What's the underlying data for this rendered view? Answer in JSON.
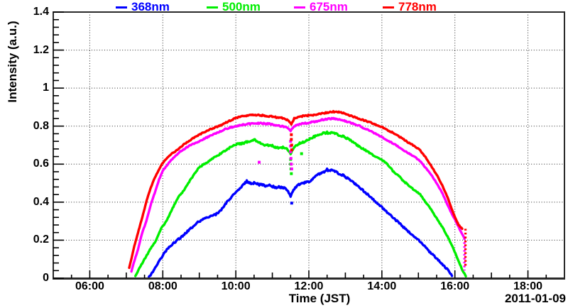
{
  "chart_data": {
    "type": "line",
    "title": "",
    "xlabel": "Time (JST)",
    "ylabel": "Intensity (a.u.)",
    "date_annotation": "2011-01-09",
    "xlim_hours": [
      5,
      19
    ],
    "ylim": [
      0,
      1.4
    ],
    "x_tick_labels": [
      "06:00",
      "08:00",
      "10:00",
      "12:00",
      "14:00",
      "16:00",
      "18:00"
    ],
    "x_tick_hours": [
      6,
      8,
      10,
      12,
      14,
      16,
      18
    ],
    "x_minor_step_hours": 0.5,
    "y_tick_labels": [
      "0",
      "0.2",
      "0.4",
      "0.6",
      "0.8",
      "1",
      "1.2",
      "1.4"
    ],
    "y_tick_values": [
      0,
      0.2,
      0.4,
      0.6,
      0.8,
      1.0,
      1.2,
      1.4
    ],
    "y_minor_step": 0.04,
    "grid": "dotted black lines at every major tick, both axes",
    "legend_position": "top outside frame",
    "frame_color": "#2a2a2a",
    "grid_color": "#000000",
    "series": [
      {
        "name": "368nm",
        "color": "#0000ff",
        "noise": 0.007,
        "points": [
          [
            7.62,
            0.005
          ],
          [
            7.75,
            0.04
          ],
          [
            7.9,
            0.09
          ],
          [
            8.0,
            0.12
          ],
          [
            8.15,
            0.16
          ],
          [
            8.3,
            0.185
          ],
          [
            8.5,
            0.215
          ],
          [
            8.7,
            0.25
          ],
          [
            8.9,
            0.285
          ],
          [
            9.0,
            0.3
          ],
          [
            9.15,
            0.315
          ],
          [
            9.3,
            0.325
          ],
          [
            9.45,
            0.335
          ],
          [
            9.6,
            0.36
          ],
          [
            9.75,
            0.4
          ],
          [
            9.9,
            0.43
          ],
          [
            10.0,
            0.455
          ],
          [
            10.15,
            0.48
          ],
          [
            10.3,
            0.51
          ],
          [
            10.4,
            0.5
          ],
          [
            10.5,
            0.5
          ],
          [
            10.6,
            0.493
          ],
          [
            10.75,
            0.49
          ],
          [
            10.9,
            0.487
          ],
          [
            11.05,
            0.48
          ],
          [
            11.2,
            0.478
          ],
          [
            11.35,
            0.474
          ],
          [
            11.45,
            0.45
          ],
          [
            11.5,
            0.43
          ],
          [
            11.58,
            0.465
          ],
          [
            11.7,
            0.49
          ],
          [
            11.85,
            0.5
          ],
          [
            12.0,
            0.507
          ],
          [
            12.1,
            0.52
          ],
          [
            12.25,
            0.548
          ],
          [
            12.4,
            0.558
          ],
          [
            12.5,
            0.57
          ],
          [
            12.65,
            0.565
          ],
          [
            12.8,
            0.553
          ],
          [
            12.95,
            0.54
          ],
          [
            13.1,
            0.52
          ],
          [
            13.3,
            0.49
          ],
          [
            13.5,
            0.46
          ],
          [
            13.7,
            0.425
          ],
          [
            13.9,
            0.39
          ],
          [
            14.1,
            0.355
          ],
          [
            14.3,
            0.32
          ],
          [
            14.5,
            0.285
          ],
          [
            14.7,
            0.25
          ],
          [
            14.9,
            0.215
          ],
          [
            15.1,
            0.185
          ],
          [
            15.3,
            0.14
          ],
          [
            15.5,
            0.105
          ],
          [
            15.65,
            0.075
          ],
          [
            15.8,
            0.045
          ],
          [
            15.92,
            0.012
          ]
        ],
        "outliers": [
          [
            11.53,
            0.395
          ]
        ]
      },
      {
        "name": "500nm",
        "color": "#00ee00",
        "noise": 0.006,
        "points": [
          [
            7.25,
            0.01
          ],
          [
            7.35,
            0.05
          ],
          [
            7.5,
            0.1
          ],
          [
            7.65,
            0.15
          ],
          [
            7.82,
            0.2
          ],
          [
            7.95,
            0.26
          ],
          [
            8.1,
            0.3
          ],
          [
            8.25,
            0.36
          ],
          [
            8.4,
            0.42
          ],
          [
            8.55,
            0.455
          ],
          [
            8.7,
            0.5
          ],
          [
            8.85,
            0.545
          ],
          [
            9.0,
            0.585
          ],
          [
            9.15,
            0.6
          ],
          [
            9.3,
            0.62
          ],
          [
            9.5,
            0.645
          ],
          [
            9.7,
            0.67
          ],
          [
            9.9,
            0.695
          ],
          [
            10.05,
            0.705
          ],
          [
            10.2,
            0.71
          ],
          [
            10.35,
            0.72
          ],
          [
            10.5,
            0.73
          ],
          [
            10.6,
            0.72
          ],
          [
            10.7,
            0.705
          ],
          [
            10.85,
            0.7
          ],
          [
            11.0,
            0.697
          ],
          [
            11.1,
            0.685
          ],
          [
            11.25,
            0.69
          ],
          [
            11.4,
            0.68
          ],
          [
            11.5,
            0.655
          ],
          [
            11.6,
            0.69
          ],
          [
            11.75,
            0.71
          ],
          [
            11.9,
            0.72
          ],
          [
            12.05,
            0.735
          ],
          [
            12.2,
            0.75
          ],
          [
            12.35,
            0.76
          ],
          [
            12.5,
            0.765
          ],
          [
            12.65,
            0.763
          ],
          [
            12.8,
            0.755
          ],
          [
            12.95,
            0.745
          ],
          [
            13.1,
            0.73
          ],
          [
            13.25,
            0.71
          ],
          [
            13.4,
            0.69
          ],
          [
            13.55,
            0.672
          ],
          [
            13.7,
            0.655
          ],
          [
            13.85,
            0.638
          ],
          [
            14.0,
            0.62
          ],
          [
            14.15,
            0.6
          ],
          [
            14.3,
            0.565
          ],
          [
            14.45,
            0.54
          ],
          [
            14.6,
            0.51
          ],
          [
            14.75,
            0.487
          ],
          [
            14.9,
            0.462
          ],
          [
            15.05,
            0.44
          ],
          [
            15.2,
            0.4
          ],
          [
            15.35,
            0.36
          ],
          [
            15.5,
            0.315
          ],
          [
            15.65,
            0.27
          ],
          [
            15.8,
            0.22
          ],
          [
            15.95,
            0.16
          ],
          [
            16.1,
            0.09
          ],
          [
            16.2,
            0.045
          ],
          [
            16.3,
            0.01
          ]
        ],
        "outliers": [
          [
            11.5,
            0.625
          ],
          [
            11.5,
            0.6
          ],
          [
            11.51,
            0.575
          ],
          [
            11.52,
            0.55
          ],
          [
            11.8,
            0.655
          ]
        ]
      },
      {
        "name": "675nm",
        "color": "#ff00ff",
        "noise": 0.004,
        "points": [
          [
            7.14,
            0.035
          ],
          [
            7.22,
            0.09
          ],
          [
            7.32,
            0.15
          ],
          [
            7.43,
            0.235
          ],
          [
            7.55,
            0.3
          ],
          [
            7.69,
            0.4
          ],
          [
            7.8,
            0.46
          ],
          [
            7.9,
            0.52
          ],
          [
            8.0,
            0.565
          ],
          [
            8.1,
            0.59
          ],
          [
            8.2,
            0.615
          ],
          [
            8.35,
            0.645
          ],
          [
            8.5,
            0.67
          ],
          [
            8.7,
            0.693
          ],
          [
            8.9,
            0.712
          ],
          [
            9.1,
            0.73
          ],
          [
            9.3,
            0.75
          ],
          [
            9.5,
            0.765
          ],
          [
            9.7,
            0.783
          ],
          [
            9.9,
            0.795
          ],
          [
            10.1,
            0.805
          ],
          [
            10.3,
            0.81
          ],
          [
            10.5,
            0.815
          ],
          [
            10.7,
            0.815
          ],
          [
            10.9,
            0.812
          ],
          [
            11.1,
            0.805
          ],
          [
            11.25,
            0.8
          ],
          [
            11.4,
            0.795
          ],
          [
            11.5,
            0.775
          ],
          [
            11.6,
            0.8
          ],
          [
            11.75,
            0.81
          ],
          [
            11.9,
            0.815
          ],
          [
            12.05,
            0.82
          ],
          [
            12.2,
            0.825
          ],
          [
            12.35,
            0.832
          ],
          [
            12.5,
            0.838
          ],
          [
            12.65,
            0.84
          ],
          [
            12.8,
            0.836
          ],
          [
            12.95,
            0.83
          ],
          [
            13.1,
            0.82
          ],
          [
            13.25,
            0.81
          ],
          [
            13.4,
            0.8
          ],
          [
            13.55,
            0.785
          ],
          [
            13.7,
            0.773
          ],
          [
            13.85,
            0.758
          ],
          [
            14.0,
            0.742
          ],
          [
            14.15,
            0.726
          ],
          [
            14.3,
            0.71
          ],
          [
            14.45,
            0.693
          ],
          [
            14.6,
            0.672
          ],
          [
            14.75,
            0.655
          ],
          [
            14.9,
            0.638
          ],
          [
            15.05,
            0.615
          ],
          [
            15.2,
            0.58
          ],
          [
            15.35,
            0.545
          ],
          [
            15.5,
            0.5
          ],
          [
            15.65,
            0.45
          ],
          [
            15.8,
            0.385
          ],
          [
            15.9,
            0.345
          ],
          [
            16.05,
            0.29
          ],
          [
            16.15,
            0.25
          ],
          [
            16.26,
            0.21
          ]
        ],
        "outliers": [
          [
            10.64,
            0.61
          ],
          [
            11.5,
            0.72
          ],
          [
            11.5,
            0.695
          ],
          [
            11.5,
            0.665
          ],
          [
            11.51,
            0.63
          ],
          [
            11.52,
            0.6
          ],
          [
            11.53,
            0.575
          ]
        ],
        "end_drop": {
          "t": 16.26,
          "from": 0.21,
          "to": 0.04
        }
      },
      {
        "name": "778nm",
        "color": "#ff0000",
        "noise": 0.004,
        "points": [
          [
            7.08,
            0.055
          ],
          [
            7.15,
            0.11
          ],
          [
            7.22,
            0.17
          ],
          [
            7.28,
            0.21
          ],
          [
            7.38,
            0.28
          ],
          [
            7.48,
            0.35
          ],
          [
            7.56,
            0.41
          ],
          [
            7.66,
            0.47
          ],
          [
            7.76,
            0.52
          ],
          [
            7.88,
            0.565
          ],
          [
            7.97,
            0.6
          ],
          [
            8.1,
            0.63
          ],
          [
            8.25,
            0.655
          ],
          [
            8.4,
            0.675
          ],
          [
            8.55,
            0.7
          ],
          [
            8.7,
            0.72
          ],
          [
            8.85,
            0.738
          ],
          [
            9.0,
            0.755
          ],
          [
            9.2,
            0.775
          ],
          [
            9.4,
            0.79
          ],
          [
            9.6,
            0.805
          ],
          [
            9.8,
            0.825
          ],
          [
            10.0,
            0.843
          ],
          [
            10.2,
            0.852
          ],
          [
            10.4,
            0.86
          ],
          [
            10.6,
            0.858
          ],
          [
            10.8,
            0.855
          ],
          [
            11.0,
            0.85
          ],
          [
            11.15,
            0.845
          ],
          [
            11.3,
            0.843
          ],
          [
            11.45,
            0.828
          ],
          [
            11.52,
            0.81
          ],
          [
            11.6,
            0.84
          ],
          [
            11.75,
            0.85
          ],
          [
            11.9,
            0.855
          ],
          [
            12.05,
            0.858
          ],
          [
            12.2,
            0.86
          ],
          [
            12.35,
            0.865
          ],
          [
            12.5,
            0.872
          ],
          [
            12.65,
            0.876
          ],
          [
            12.8,
            0.874
          ],
          [
            12.95,
            0.868
          ],
          [
            13.1,
            0.858
          ],
          [
            13.25,
            0.848
          ],
          [
            13.4,
            0.838
          ],
          [
            13.55,
            0.828
          ],
          [
            13.7,
            0.818
          ],
          [
            13.85,
            0.806
          ],
          [
            14.0,
            0.795
          ],
          [
            14.15,
            0.78
          ],
          [
            14.3,
            0.765
          ],
          [
            14.45,
            0.748
          ],
          [
            14.6,
            0.73
          ],
          [
            14.75,
            0.71
          ],
          [
            14.9,
            0.695
          ],
          [
            15.05,
            0.672
          ],
          [
            15.2,
            0.635
          ],
          [
            15.35,
            0.59
          ],
          [
            15.5,
            0.545
          ],
          [
            15.65,
            0.49
          ],
          [
            15.8,
            0.425
          ],
          [
            15.95,
            0.345
          ],
          [
            16.1,
            0.28
          ],
          [
            16.2,
            0.26
          ]
        ],
        "outliers": [
          [
            11.52,
            0.755
          ],
          [
            11.52,
            0.73
          ],
          [
            11.53,
            0.7
          ],
          [
            11.53,
            0.675
          ]
        ],
        "end_drop": {
          "t": 16.29,
          "from": 0.26,
          "to": 0.06
        }
      }
    ]
  }
}
